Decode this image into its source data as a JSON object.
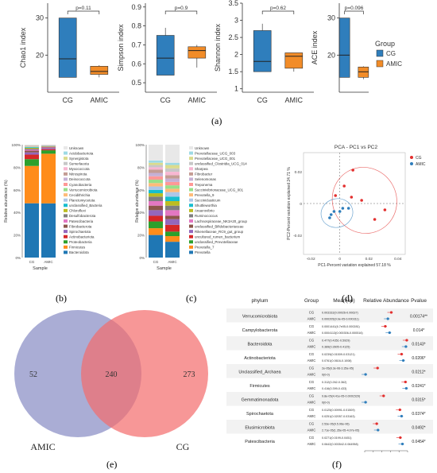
{
  "panel_letters": {
    "a": "(a)",
    "b": "(b)",
    "c": "(c)",
    "d": "(d)",
    "e": "(e)",
    "f": "(f)"
  },
  "colors": {
    "cg": "#2f7ebc",
    "amic": "#f28c28",
    "pca_cg": "#e3302f",
    "pca_amic": "#2f7ebc",
    "venn_amic": "#8e92c7",
    "venn_cg": "#f36b6b"
  },
  "chart_data": [
    {
      "id": "a",
      "type": "box",
      "group_legend": {
        "title": "Group",
        "items": [
          "CG",
          "AMIC"
        ]
      },
      "categories": [
        "CG",
        "AMIC"
      ],
      "panels": [
        {
          "ylabel": "Chao1 index",
          "pvalue": "p=0.11",
          "ylim": [
            10,
            34
          ],
          "ticks": [
            20,
            30
          ],
          "boxes": [
            {
              "min": 14,
              "q1": 14,
              "median": 19,
              "q3": 30,
              "max": 30
            },
            {
              "min": 14,
              "q1": 14.8,
              "median": 15.6,
              "q3": 17,
              "max": 17.3
            }
          ]
        },
        {
          "ylabel": "Simpson index",
          "pvalue": "p=0.9",
          "ylim": [
            0.45,
            0.92
          ],
          "ticks": [
            0.5,
            0.6,
            0.7,
            0.8,
            0.9
          ],
          "boxes": [
            {
              "min": 0.54,
              "q1": 0.54,
              "median": 0.63,
              "q3": 0.75,
              "max": 0.79
            },
            {
              "min": 0.58,
              "q1": 0.63,
              "median": 0.67,
              "q3": 0.69,
              "max": 0.7
            }
          ]
        },
        {
          "ylabel": "Shannon index",
          "pvalue": "p=0.62",
          "ylim": [
            0.9,
            3.5
          ],
          "ticks": [
            1,
            1.5,
            2,
            2.5,
            3,
            3.5
          ],
          "boxes": [
            {
              "min": 1.5,
              "q1": 1.5,
              "median": 1.8,
              "q3": 2.7,
              "max": 2.9
            },
            {
              "min": 1.5,
              "q1": 1.6,
              "median": 1.95,
              "q3": 2.05,
              "max": 2.05
            }
          ]
        },
        {
          "ylabel": "ACE index",
          "pvalue": "p=0.096",
          "ylim": [
            10,
            34
          ],
          "ticks": [
            20,
            30
          ],
          "boxes": [
            {
              "min": 14,
              "q1": 14,
              "median": 20,
              "q3": 30,
              "max": 30
            },
            {
              "min": 13.5,
              "q1": 14,
              "median": 15.5,
              "q3": 16.8,
              "max": 17
            }
          ]
        }
      ]
    },
    {
      "id": "b",
      "type": "stacked-bar",
      "ylabel": "Relative abundance (%)",
      "xlabel": "Sample",
      "categories": [
        "CG",
        "AMIC"
      ],
      "yticks": [
        "0%",
        "20%",
        "40%",
        "60%",
        "80%",
        "100%"
      ],
      "series": [
        {
          "name": "Bacteroidota",
          "color": "#1f77b4",
          "values": [
            48,
            48
          ]
        },
        {
          "name": "Firmicutes",
          "color": "#ff8c1a",
          "values": [
            33,
            44
          ]
        },
        {
          "name": "Proteobacteria",
          "color": "#2ca02c",
          "values": [
            6,
            3
          ]
        },
        {
          "name": "Actinobacteriota",
          "color": "#d62728",
          "values": [
            4,
            1
          ]
        },
        {
          "name": "Spirochaetota",
          "color": "#9467bd",
          "values": [
            2,
            1
          ]
        },
        {
          "name": "Fibrobacterota",
          "color": "#8c564b",
          "values": [
            1.5,
            0.5
          ]
        },
        {
          "name": "Patescibacteria",
          "color": "#e377c2",
          "values": [
            1,
            0.5
          ]
        },
        {
          "name": "Desulfobacterota",
          "color": "#7f7f7f",
          "values": [
            0.8,
            0.3
          ]
        },
        {
          "name": "Chloroflexi",
          "color": "#bcbd22",
          "values": [
            0.7,
            0.3
          ]
        },
        {
          "name": "unclassified_Bacteria",
          "color": "#17becf",
          "values": [
            0.6,
            0.2
          ]
        },
        {
          "name": "Planctomycetota",
          "color": "#aec7e8",
          "values": [
            0.4,
            0.2
          ]
        },
        {
          "name": "Cecidithrichia",
          "color": "#ffbb78",
          "values": [
            0.3,
            0.1
          ]
        },
        {
          "name": "Verrucomicrobiota",
          "color": "#98df8a",
          "values": [
            0.3,
            0.1
          ]
        },
        {
          "name": "Cyanobacteria",
          "color": "#ff9896",
          "values": [
            0.2,
            0.1
          ]
        },
        {
          "name": "Deinococcota",
          "color": "#c5b0d5",
          "values": [
            0.1,
            0.1
          ]
        },
        {
          "name": "Nitrospirota",
          "color": "#c49c94",
          "values": [
            0.1,
            0.1
          ]
        },
        {
          "name": "Myxococcota",
          "color": "#f7b6d2",
          "values": [
            0.1,
            0.1
          ]
        },
        {
          "name": "Sumerlaeota",
          "color": "#c7c7c7",
          "values": [
            0.1,
            0.1
          ]
        },
        {
          "name": "Synergistota",
          "color": "#dbdb8d",
          "values": [
            0.1,
            0.1
          ]
        },
        {
          "name": "Acidobacteriota",
          "color": "#9edae5",
          "values": [
            0.1,
            0.1
          ]
        },
        {
          "name": "Unknown",
          "color": "#e8e8e8",
          "values": [
            0.4,
            0.1
          ]
        }
      ]
    },
    {
      "id": "c",
      "type": "stacked-bar",
      "ylabel": "Relative abundance (%)",
      "xlabel": "Sample",
      "categories": [
        "CG",
        "AMIC"
      ],
      "yticks": [
        "0%",
        "20%",
        "40%",
        "60%",
        "80%",
        "100%"
      ],
      "series": [
        {
          "name": "Prevotella",
          "color": "#1f77b4",
          "values": [
            20,
            14
          ]
        },
        {
          "name": "Prevotella_7",
          "color": "#ff8c1a",
          "values": [
            6,
            5
          ]
        },
        {
          "name": "unclassified_Prevotellaceae",
          "color": "#2ca02c",
          "values": [
            6,
            4
          ]
        },
        {
          "name": "uncultured_rumen_bacterium",
          "color": "#d62728",
          "values": [
            5,
            6
          ]
        },
        {
          "name": "Rikenellaceae_RC9_gut_group",
          "color": "#9467bd",
          "values": [
            5,
            5
          ]
        },
        {
          "name": "unclassified_Bifidobacteriaceae",
          "color": "#8c564b",
          "values": [
            4,
            3
          ]
        },
        {
          "name": "Lachnospiraceae_NK3A20_group",
          "color": "#e377c2",
          "values": [
            4,
            5
          ]
        },
        {
          "name": "Ruminococcus",
          "color": "#7f7f7f",
          "values": [
            4,
            4
          ]
        },
        {
          "name": "Anaerovibrio",
          "color": "#bcbd22",
          "values": [
            3,
            4
          ]
        },
        {
          "name": "Shuttleworthia",
          "color": "#17becf",
          "values": [
            3,
            4
          ]
        },
        {
          "name": "Succiniclasticum",
          "color": "#aec7e8",
          "values": [
            3,
            4
          ]
        },
        {
          "name": "Prevotella_9",
          "color": "#ffbb78",
          "values": [
            3,
            3
          ]
        },
        {
          "name": "Succinivibrionaceae_UCG_001",
          "color": "#98df8a",
          "values": [
            3,
            3
          ]
        },
        {
          "name": "Treponema",
          "color": "#ff9896",
          "values": [
            3,
            3
          ]
        },
        {
          "name": "Selenomonas",
          "color": "#c5b0d5",
          "values": [
            3,
            3
          ]
        },
        {
          "name": "Fibrobacter",
          "color": "#c49c94",
          "values": [
            3,
            3
          ]
        },
        {
          "name": "Sharpea",
          "color": "#f7b6d2",
          "values": [
            2,
            3
          ]
        },
        {
          "name": "unclassified_Clostridia_UCG_014",
          "color": "#c7c7c7",
          "values": [
            2,
            3
          ]
        },
        {
          "name": "Prevotellaceae_UCG_001",
          "color": "#dbdb8d",
          "values": [
            2,
            3
          ]
        },
        {
          "name": "Prevotellaceae_UCG_003",
          "color": "#9edae5",
          "values": [
            2,
            2
          ]
        },
        {
          "name": "Unknown",
          "color": "#e8e8e8",
          "values": [
            14,
            16
          ]
        }
      ]
    },
    {
      "id": "d",
      "type": "scatter",
      "title": "PCA - PC1 vs PC2",
      "xlabel": "PC1-Percent variation explained 57.18 %",
      "ylabel": "PC2-Percent variation explained 24.71 %",
      "xlim": [
        -0.025,
        0.045
      ],
      "ylim": [
        -0.032,
        0.032
      ],
      "xticks": [
        -0.02,
        0,
        0.02,
        0.04
      ],
      "yticks": [
        -0.02,
        0,
        0.02
      ],
      "xticklabels": [
        "-0.02",
        "0",
        "0.02",
        "0.04"
      ],
      "yticklabels": [
        "-0.02",
        "0",
        "0.02"
      ],
      "legend": [
        "CG",
        "AMIC"
      ],
      "series": [
        {
          "name": "CG",
          "points": [
            [
              0.009,
              0.021
            ],
            [
              0.003,
              0.011
            ],
            [
              -0.003,
              0.005
            ],
            [
              0.008,
              0.004
            ],
            [
              0.015,
              0.002
            ],
            [
              0.031,
              -0.004
            ],
            [
              0.024,
              -0.01
            ]
          ]
        },
        {
          "name": "AMIC",
          "points": [
            [
              0.002,
              -0.003
            ],
            [
              0.006,
              -0.003
            ],
            [
              -0.004,
              -0.005
            ],
            [
              -0.006,
              -0.007
            ],
            [
              0.0,
              -0.005
            ],
            [
              -0.007,
              -0.009
            ]
          ]
        }
      ],
      "ellipses": [
        {
          "name": "CG",
          "cx": 0.017,
          "cy": 0.002,
          "rx": 0.022,
          "ry": 0.021,
          "angle": -30
        },
        {
          "name": "AMIC",
          "cx": -0.002,
          "cy": -0.006,
          "rx": 0.011,
          "ry": 0.009,
          "angle": -15
        }
      ]
    },
    {
      "id": "e",
      "type": "venn",
      "sets": [
        {
          "name": "AMIC",
          "only": "52"
        },
        {
          "name": "CG",
          "only": "273"
        }
      ],
      "intersection": "240"
    },
    {
      "id": "f",
      "type": "table",
      "headers": {
        "phylum": "phylum",
        "group": "Group",
        "mean": "Mean(se)",
        "abundance": "Relative Abundance",
        "pvalue": "Pvalue"
      },
      "rows": [
        {
          "phylum": "Verrucomicrobiota",
          "cg": "0.003332(0.00026-0.00637)",
          "amic": "0.000205(9.9e-05-0.000311)",
          "pvalue": "0.00174**",
          "cg_x": 0.62,
          "amic_x": 0.54
        },
        {
          "phylum": "Campylobacterota",
          "cg": "0.0001441(6.7e05-0.000281)",
          "amic": "0.0004113(0.000306-0.000516)",
          "pvalue": "0.014*",
          "cg_x": 0.48,
          "amic_x": 0.58
        },
        {
          "phylum": "Bacteroidota",
          "cg": "0.477(0.4351-0.5929)",
          "amic": "0.389(0.3605-0.4125)",
          "pvalue": "0.0143*",
          "cg_x": 0.98,
          "amic_x": 0.96
        },
        {
          "phylum": "Actinobacteriota",
          "cg": "0.0239(0.01509-0.03121)",
          "amic": "0.0761(0.0616-0.1008)",
          "pvalue": "0.0206*",
          "cg_x": 0.86,
          "amic_x": 0.9
        },
        {
          "phylum": "Unclassified_Archaea",
          "cg": "2e-05(8.3e-06-3.35e-05)",
          "amic": "0(0-0)",
          "pvalue": "0.0212*",
          "cg_x": 0.3,
          "amic_x": 0.02
        },
        {
          "phylum": "Firmicutes",
          "cg": "0.312(0.262-0.362)",
          "amic": "0.416(0.399-0.433)",
          "pvalue": "0.0241*",
          "cg_x": 0.95,
          "amic_x": 0.97
        },
        {
          "phylum": "Gemmatimonadota",
          "cg": "9.8e-05(4.41e-05-0.0001529)",
          "amic": "0(0-0)",
          "pvalue": "0.0315*",
          "cg_x": 0.44,
          "amic_x": 0.02
        },
        {
          "phylum": "Spirochaetota",
          "cg": "0.0125(0.00991-0.01509)",
          "amic": "0.0251(0.02057-0.03163)",
          "pvalue": "0.0374*",
          "cg_x": 0.82,
          "amic_x": 0.86
        },
        {
          "phylum": "Elusimicrobiota",
          "cg": "2.53e-05(9.5.96e-06)",
          "amic": "2.71e-05(1.35e-05-4.07e-05)",
          "pvalue": "0.0492*",
          "cg_x": 0.28,
          "amic_x": 0.31
        },
        {
          "phylum": "Patescibacteria",
          "cg": "0.0271(0.0199-0.0451)",
          "amic": "0.0642(0.003542-0.064958)",
          "pvalue": "0.0454*",
          "cg_x": 0.83,
          "amic_x": 0.88
        }
      ],
      "axis_ticks": [
        "0",
        "1e-05",
        "1e-04",
        "0.001",
        "0.01",
        "0.1"
      ]
    }
  ]
}
